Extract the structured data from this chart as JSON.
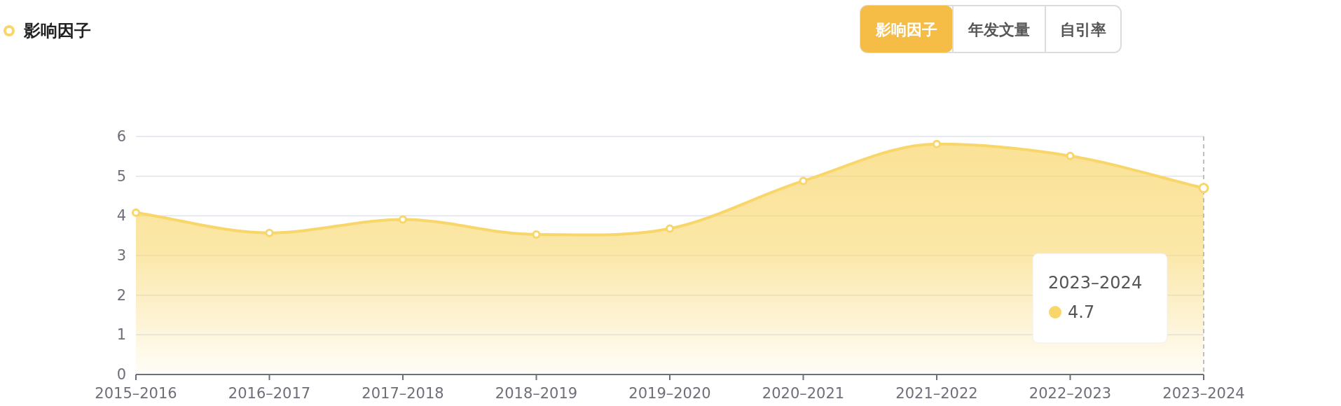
{
  "chart_data": {
    "type": "area",
    "title": "影响因子",
    "categories": [
      "2015–2016",
      "2016–2017",
      "2017–2018",
      "2018–2019",
      "2019–2020",
      "2020–2021",
      "2021–2022",
      "2022–2023",
      "2023–2024"
    ],
    "series": [
      {
        "color": "#f8d66a",
        "values": [
          4.08,
          3.57,
          3.91,
          3.53,
          3.68,
          4.88,
          5.81,
          5.51,
          4.7
        ]
      }
    ],
    "ylim": [
      0,
      6
    ],
    "yticks": [
      0,
      1,
      2,
      3,
      4,
      5,
      6
    ],
    "grid": "y",
    "marker": "circle",
    "ref_lines": [
      {
        "axis": "x",
        "value": "2023–2024",
        "color": "#aaaaaa",
        "line_style": "dashed"
      }
    ],
    "annotations": [
      "影响因子",
      "年发文量",
      "自引率",
      "2023–2024",
      "4.7"
    ]
  }
}
